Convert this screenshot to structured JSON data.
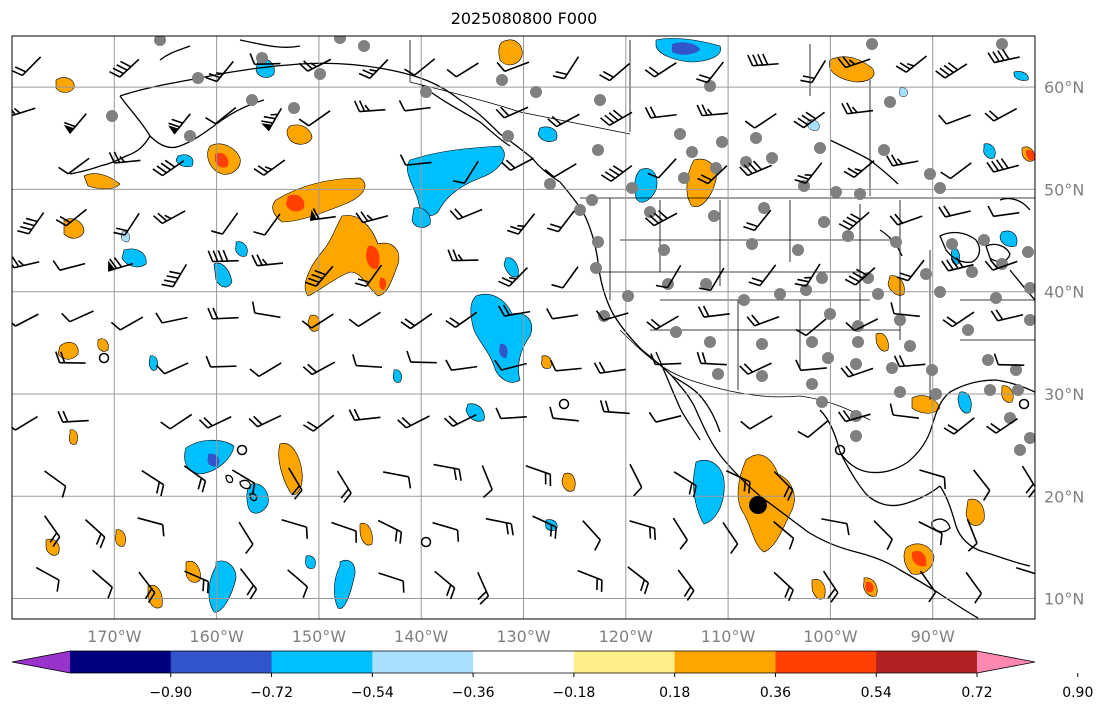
{
  "title": "2025080800 F000",
  "map": {
    "lon_range": [
      -180,
      -80
    ],
    "lat_range": [
      8,
      65
    ],
    "lon_labels": [
      "170°W",
      "160°W",
      "150°W",
      "140°W",
      "130°W",
      "120°W",
      "110°W",
      "100°W",
      "90°W"
    ],
    "lon_values": [
      -170,
      -160,
      -150,
      -140,
      -130,
      -120,
      -110,
      -100,
      -90
    ],
    "lat_labels": [
      "60°N",
      "50°N",
      "40°N",
      "30°N",
      "20°N",
      "10°N"
    ],
    "lat_values": [
      60,
      50,
      40,
      30,
      20,
      10
    ],
    "gridlines": true,
    "grid_color": "#9a9a9a",
    "label_color": "#808080"
  },
  "colorbar": {
    "ticks": [
      "−0.90",
      "−0.72",
      "−0.54",
      "−0.36",
      "−0.18",
      "0.18",
      "0.36",
      "0.54",
      "0.72",
      "0.90"
    ],
    "colors": [
      "#9933cc",
      "#000080",
      "#3355cc",
      "#00bfff",
      "#aae0ff",
      "#ffffff",
      "#ffee88",
      "#ffa500",
      "#ff4000",
      "#b22222",
      "#ff88b0"
    ]
  },
  "features": {
    "orange_color": "#ffa500",
    "red_color": "#ff4000",
    "blue_color": "#00bfff",
    "lightblue_color": "#aae0ff",
    "darkblue_color": "#3355cc"
  }
}
